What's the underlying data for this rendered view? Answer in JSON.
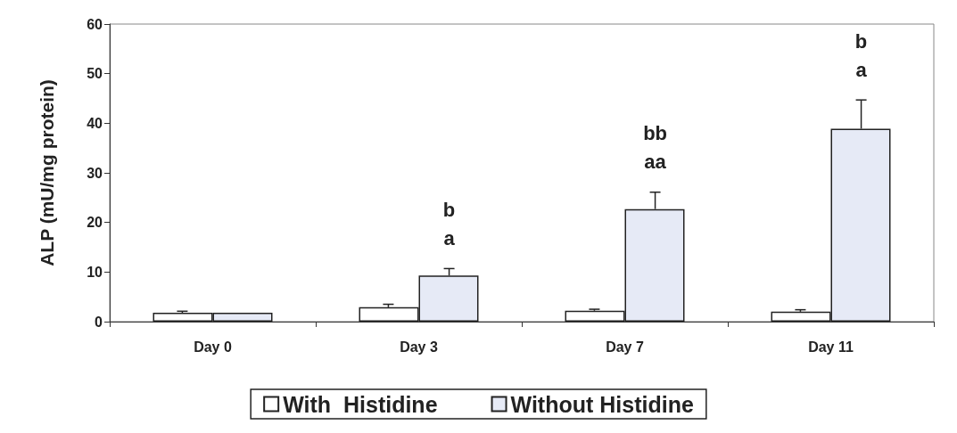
{
  "chart_data": {
    "type": "bar",
    "ylabel": "ALP (mU/mg protein)",
    "categories": [
      "Day 0",
      "Day 3",
      "Day 7",
      "Day 11"
    ],
    "series": [
      {
        "name": "With  Histidine",
        "color": "#ffffff",
        "values": [
          1.8,
          2.9,
          2.2,
          2.0
        ],
        "errors": [
          [
            1.8,
            2.1
          ],
          [
            2.9,
            3.5
          ],
          [
            2.2,
            2.5
          ],
          [
            2.0,
            2.4
          ]
        ]
      },
      {
        "name": "Without Histidine",
        "color": "#e6eaf6",
        "values": [
          1.8,
          9.3,
          22.7,
          38.9
        ],
        "errors": [
          null,
          [
            9.3,
            10.7
          ],
          [
            22.7,
            26.1
          ],
          [
            38.9,
            44.7
          ]
        ]
      }
    ],
    "ylim": [
      0,
      60
    ],
    "yticks": [
      0,
      10,
      20,
      30,
      40,
      50,
      60
    ],
    "grid": false,
    "legend": "bottom",
    "annotations": [
      {
        "text": "b\na",
        "x": "Day 3",
        "y": 9.3
      },
      {
        "text": "bb\naa",
        "x": "Day 7",
        "y": 22.7
      },
      {
        "text": "b\na",
        "x": "Day 11",
        "y": 38.9
      }
    ]
  }
}
